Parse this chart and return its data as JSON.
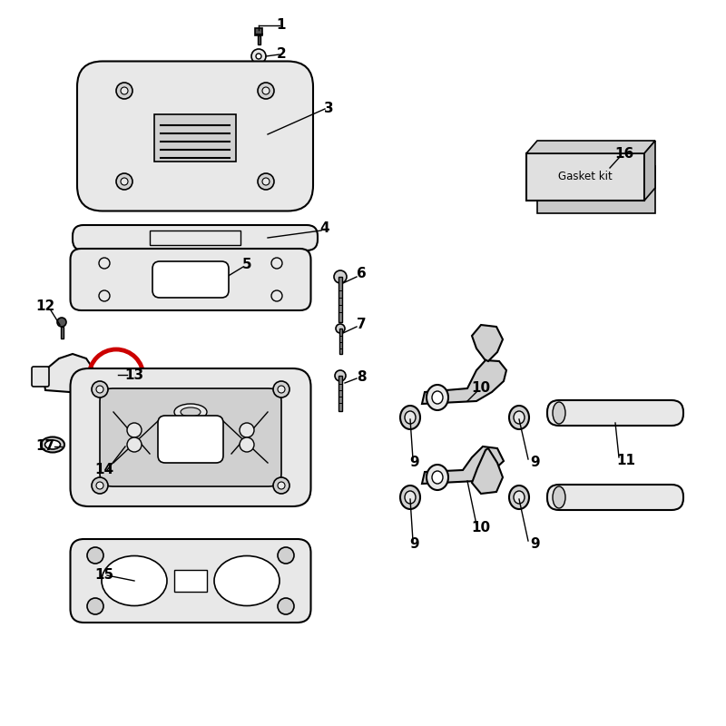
{
  "background_color": "#ffffff",
  "line_color": "#000000",
  "part_fill": "#d0d0d0",
  "part_fill_light": "#e8e8e8",
  "part_fill_dark": "#b0b0b0",
  "red_highlight": "#cc0000",
  "gasket_front": "#e0e0e0",
  "gasket_back": "#c8c8c8",
  "gasket_top": "#d0d0d0",
  "gasket_side": "#b8b8b8",
  "screw_fill": "#555555",
  "bolt_fill": "#888888"
}
